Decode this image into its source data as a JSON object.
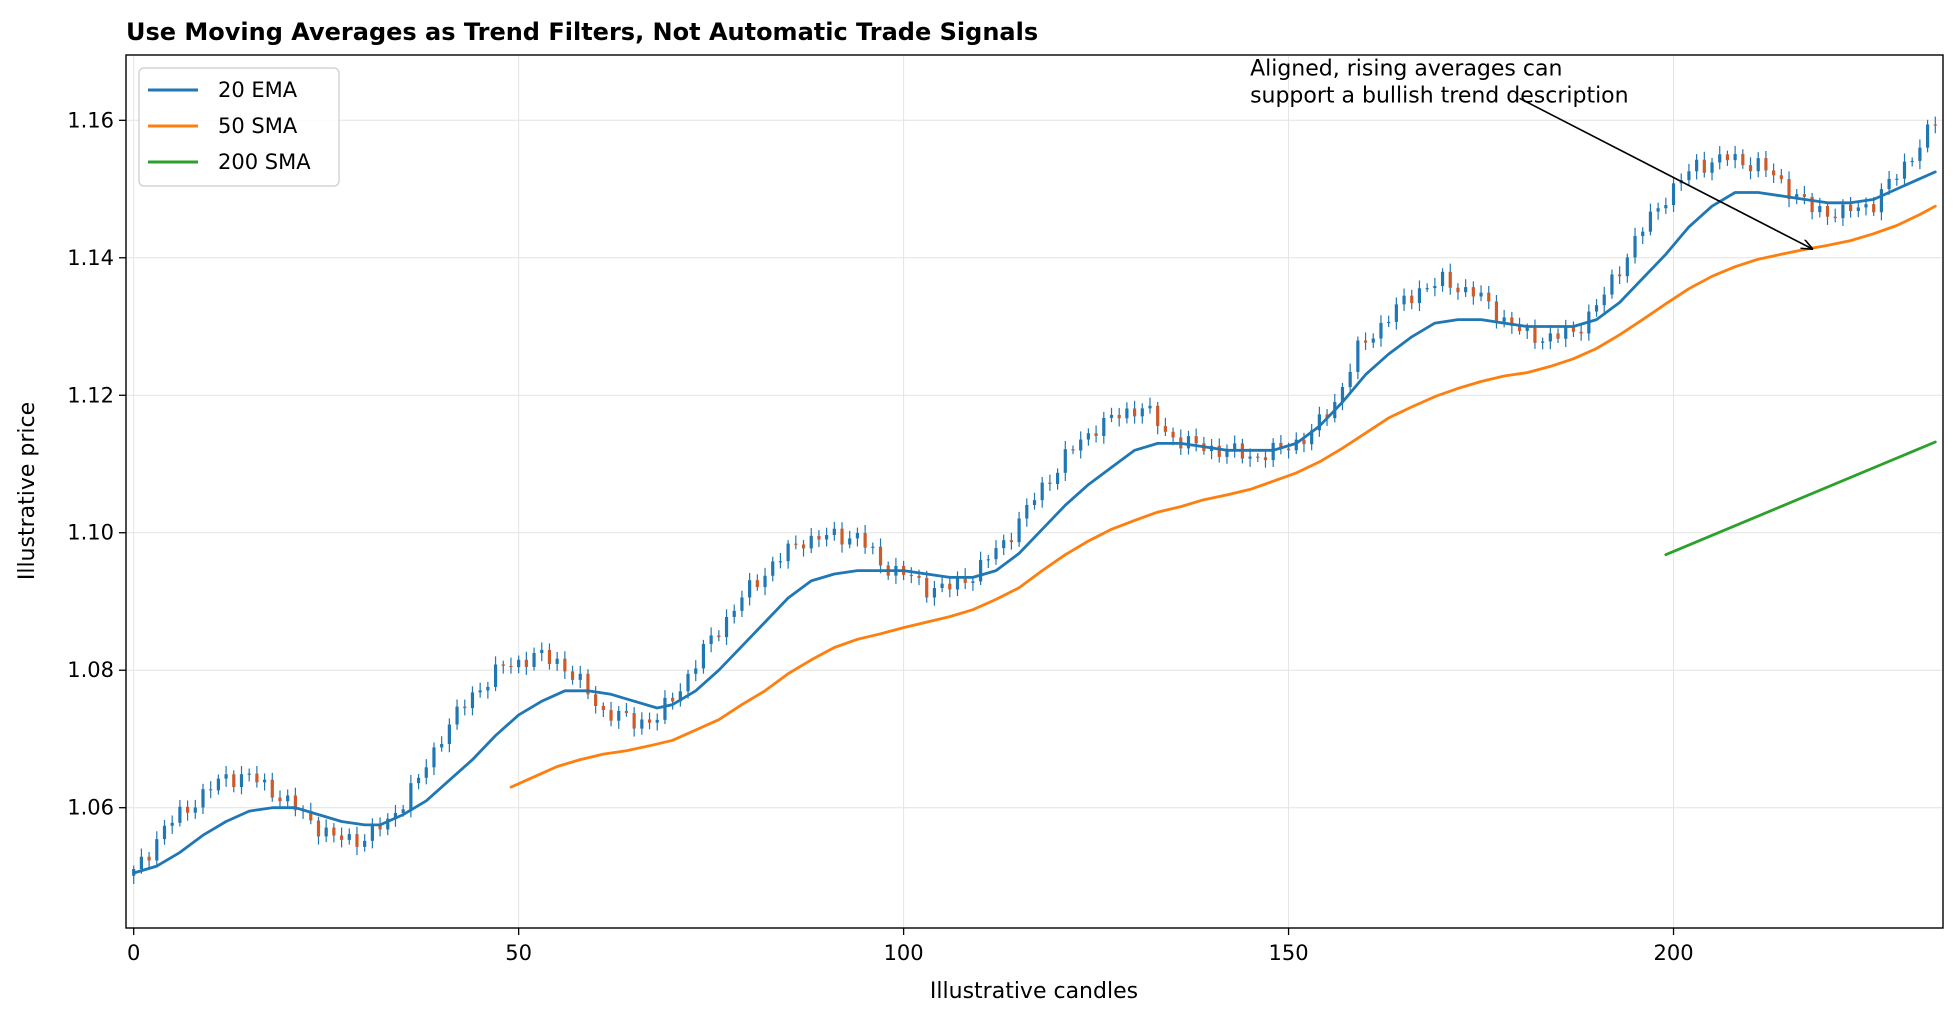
{
  "chart_data": {
    "type": "line",
    "title": "Use Moving Averages as Trend Filters, Not Automatic Trade Signals",
    "xlabel": "Illustrative candles",
    "ylabel": "Illustrative price",
    "xlim": [
      -1,
      235
    ],
    "ylim": [
      1.0425,
      1.1695
    ],
    "x_ticks": [
      0,
      50,
      100,
      150,
      200
    ],
    "x_tick_labels": [
      "0",
      "50",
      "100",
      "150",
      "200"
    ],
    "y_ticks": [
      1.06,
      1.08,
      1.1,
      1.12,
      1.14,
      1.16
    ],
    "y_tick_labels": [
      "1.06",
      "1.08",
      "1.10",
      "1.12",
      "1.14",
      "1.16"
    ],
    "grid": true,
    "legend_position": "top-left",
    "candles_close_anchors": [
      [
        0,
        1.0505
      ],
      [
        4,
        1.057
      ],
      [
        8,
        1.061
      ],
      [
        12,
        1.0645
      ],
      [
        15,
        1.0645
      ],
      [
        18,
        1.0625
      ],
      [
        22,
        1.059
      ],
      [
        26,
        1.0555
      ],
      [
        30,
        1.0555
      ],
      [
        33,
        1.058
      ],
      [
        37,
        1.064
      ],
      [
        40,
        1.0705
      ],
      [
        44,
        1.0765
      ],
      [
        48,
        1.0805
      ],
      [
        52,
        1.082
      ],
      [
        55,
        1.0815
      ],
      [
        58,
        1.078
      ],
      [
        61,
        1.074
      ],
      [
        65,
        1.0725
      ],
      [
        68,
        1.073
      ],
      [
        71,
        1.0775
      ],
      [
        75,
        1.0845
      ],
      [
        79,
        1.0905
      ],
      [
        83,
        1.0955
      ],
      [
        87,
        1.099
      ],
      [
        91,
        1.0995
      ],
      [
        94,
        1.0995
      ],
      [
        97,
        1.0955
      ],
      [
        100,
        1.094
      ],
      [
        103,
        1.092
      ],
      [
        106,
        1.092
      ],
      [
        109,
        1.094
      ],
      [
        113,
        1.0985
      ],
      [
        117,
        1.105
      ],
      [
        121,
        1.111
      ],
      [
        125,
        1.1155
      ],
      [
        129,
        1.1175
      ],
      [
        131,
        1.1185
      ],
      [
        134,
        1.1145
      ],
      [
        138,
        1.1125
      ],
      [
        142,
        1.112
      ],
      [
        145,
        1.111
      ],
      [
        149,
        1.112
      ],
      [
        153,
        1.1145
      ],
      [
        156,
        1.119
      ],
      [
        159,
        1.1265
      ],
      [
        163,
        1.1315
      ],
      [
        167,
        1.1355
      ],
      [
        170,
        1.1365
      ],
      [
        174,
        1.135
      ],
      [
        177,
        1.132
      ],
      [
        181,
        1.1285
      ],
      [
        184,
        1.1285
      ],
      [
        187,
        1.129
      ],
      [
        191,
        1.1345
      ],
      [
        195,
        1.1425
      ],
      [
        199,
        1.149
      ],
      [
        203,
        1.1535
      ],
      [
        207,
        1.1545
      ],
      [
        211,
        1.1535
      ],
      [
        214,
        1.151
      ],
      [
        218,
        1.147
      ],
      [
        222,
        1.1465
      ],
      [
        226,
        1.148
      ],
      [
        229,
        1.152
      ],
      [
        232,
        1.1565
      ],
      [
        234,
        1.1595
      ]
    ],
    "series": [
      {
        "name": "20 EMA",
        "color": "#1f77b4",
        "points": [
          [
            0,
            1.0505
          ],
          [
            3,
            1.0515
          ],
          [
            6,
            1.0535
          ],
          [
            9,
            1.056
          ],
          [
            12,
            1.058
          ],
          [
            15,
            1.0595
          ],
          [
            18,
            1.06
          ],
          [
            21,
            1.06
          ],
          [
            24,
            1.059
          ],
          [
            27,
            1.058
          ],
          [
            30,
            1.0575
          ],
          [
            32,
            1.0575
          ],
          [
            35,
            1.059
          ],
          [
            38,
            1.061
          ],
          [
            41,
            1.064
          ],
          [
            44,
            1.067
          ],
          [
            47,
            1.0705
          ],
          [
            50,
            1.0735
          ],
          [
            53,
            1.0755
          ],
          [
            56,
            1.077
          ],
          [
            59,
            1.077
          ],
          [
            62,
            1.0765
          ],
          [
            65,
            1.0755
          ],
          [
            68,
            1.0745
          ],
          [
            70,
            1.075
          ],
          [
            73,
            1.077
          ],
          [
            76,
            1.08
          ],
          [
            79,
            1.0835
          ],
          [
            82,
            1.087
          ],
          [
            85,
            1.0905
          ],
          [
            88,
            1.093
          ],
          [
            91,
            1.094
          ],
          [
            94,
            1.0945
          ],
          [
            97,
            1.0945
          ],
          [
            100,
            1.0945
          ],
          [
            103,
            1.094
          ],
          [
            106,
            1.0935
          ],
          [
            109,
            1.0935
          ],
          [
            112,
            1.0945
          ],
          [
            115,
            1.097
          ],
          [
            118,
            1.1005
          ],
          [
            121,
            1.104
          ],
          [
            124,
            1.107
          ],
          [
            127,
            1.1095
          ],
          [
            130,
            1.112
          ],
          [
            133,
            1.113
          ],
          [
            136,
            1.113
          ],
          [
            139,
            1.1125
          ],
          [
            142,
            1.112
          ],
          [
            145,
            1.112
          ],
          [
            148,
            1.112
          ],
          [
            151,
            1.113
          ],
          [
            154,
            1.1155
          ],
          [
            157,
            1.119
          ],
          [
            160,
            1.123
          ],
          [
            163,
            1.126
          ],
          [
            166,
            1.1285
          ],
          [
            169,
            1.1305
          ],
          [
            172,
            1.131
          ],
          [
            175,
            1.131
          ],
          [
            178,
            1.1305
          ],
          [
            181,
            1.13
          ],
          [
            184,
            1.13
          ],
          [
            187,
            1.13
          ],
          [
            190,
            1.131
          ],
          [
            193,
            1.1335
          ],
          [
            196,
            1.137
          ],
          [
            199,
            1.1405
          ],
          [
            202,
            1.1445
          ],
          [
            205,
            1.1475
          ],
          [
            208,
            1.1495
          ],
          [
            211,
            1.1495
          ],
          [
            214,
            1.149
          ],
          [
            217,
            1.1485
          ],
          [
            220,
            1.148
          ],
          [
            223,
            1.148
          ],
          [
            226,
            1.1485
          ],
          [
            229,
            1.15
          ],
          [
            232,
            1.1515
          ],
          [
            234,
            1.1525
          ]
        ]
      },
      {
        "name": "50 SMA",
        "color": "#ff7f0e",
        "points": [
          [
            49,
            1.063
          ],
          [
            52,
            1.0645
          ],
          [
            55,
            1.066
          ],
          [
            58,
            1.067
          ],
          [
            61,
            1.0678
          ],
          [
            64,
            1.0683
          ],
          [
            67,
            1.069
          ],
          [
            70,
            1.0698
          ],
          [
            73,
            1.0713
          ],
          [
            76,
            1.0728
          ],
          [
            79,
            1.075
          ],
          [
            82,
            1.077
          ],
          [
            85,
            1.0795
          ],
          [
            88,
            1.0815
          ],
          [
            91,
            1.0833
          ],
          [
            94,
            1.0845
          ],
          [
            97,
            1.0853
          ],
          [
            100,
            1.0862
          ],
          [
            103,
            1.087
          ],
          [
            106,
            1.0878
          ],
          [
            109,
            1.0888
          ],
          [
            112,
            1.0903
          ],
          [
            115,
            1.092
          ],
          [
            118,
            1.0945
          ],
          [
            121,
            1.0968
          ],
          [
            124,
            1.0988
          ],
          [
            127,
            1.1005
          ],
          [
            130,
            1.1018
          ],
          [
            133,
            1.103
          ],
          [
            136,
            1.1038
          ],
          [
            139,
            1.1048
          ],
          [
            142,
            1.1055
          ],
          [
            145,
            1.1063
          ],
          [
            148,
            1.1075
          ],
          [
            151,
            1.1087
          ],
          [
            154,
            1.1103
          ],
          [
            157,
            1.1123
          ],
          [
            160,
            1.1145
          ],
          [
            163,
            1.1167
          ],
          [
            166,
            1.1183
          ],
          [
            169,
            1.1198
          ],
          [
            172,
            1.121
          ],
          [
            175,
            1.122
          ],
          [
            178,
            1.1228
          ],
          [
            181,
            1.1233
          ],
          [
            184,
            1.1242
          ],
          [
            187,
            1.1253
          ],
          [
            190,
            1.1268
          ],
          [
            193,
            1.1288
          ],
          [
            196,
            1.131
          ],
          [
            199,
            1.1333
          ],
          [
            202,
            1.1355
          ],
          [
            205,
            1.1373
          ],
          [
            208,
            1.1387
          ],
          [
            211,
            1.1398
          ],
          [
            214,
            1.1405
          ],
          [
            217,
            1.1412
          ],
          [
            220,
            1.1418
          ],
          [
            223,
            1.1425
          ],
          [
            226,
            1.1435
          ],
          [
            229,
            1.1447
          ],
          [
            232,
            1.1463
          ],
          [
            234,
            1.1475
          ]
        ]
      },
      {
        "name": "200 SMA",
        "color": "#2ca02c",
        "points": [
          [
            199,
            1.0968
          ],
          [
            234,
            1.1132
          ]
        ]
      }
    ],
    "annotations": [
      {
        "text_lines": [
          "Aligned, rising averages can",
          "support a bullish trend description"
        ],
        "text_at": [
          145,
          1.1665
        ],
        "arrow_from": [
          180,
          1.1632
        ],
        "arrow_to": [
          218,
          1.1413
        ]
      }
    ]
  }
}
